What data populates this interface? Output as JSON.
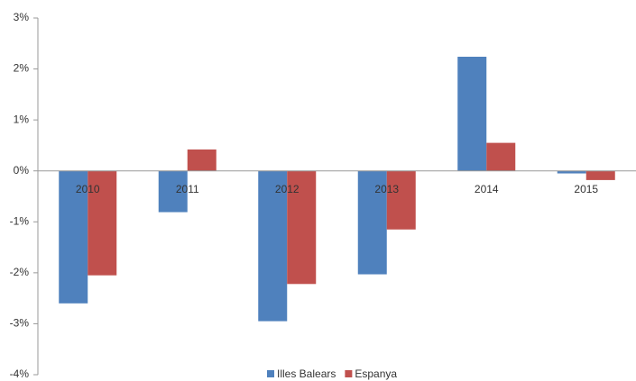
{
  "chart_data": {
    "type": "bar",
    "categories": [
      "2010",
      "2011",
      "2012",
      "2013",
      "2014",
      "2015"
    ],
    "series": [
      {
        "name": "Illes Balears",
        "color": "#4f81bd",
        "values": [
          -2.6,
          -0.81,
          -2.95,
          -2.03,
          2.24,
          -0.05
        ]
      },
      {
        "name": "Espanya",
        "color": "#c0504d",
        "values": [
          -2.05,
          0.42,
          -2.22,
          -1.15,
          0.55,
          -0.18
        ]
      }
    ],
    "ylim": [
      -4,
      3
    ],
    "yticks": [
      {
        "value": -4,
        "label": "-4%"
      },
      {
        "value": -3,
        "label": "-3%"
      },
      {
        "value": -2,
        "label": "-2%"
      },
      {
        "value": -1,
        "label": "-1%"
      },
      {
        "value": 0,
        "label": "0%"
      },
      {
        "value": 1,
        "label": "1%"
      },
      {
        "value": 2,
        "label": "2%"
      },
      {
        "value": 3,
        "label": "3%"
      }
    ],
    "legend": "bottom"
  }
}
